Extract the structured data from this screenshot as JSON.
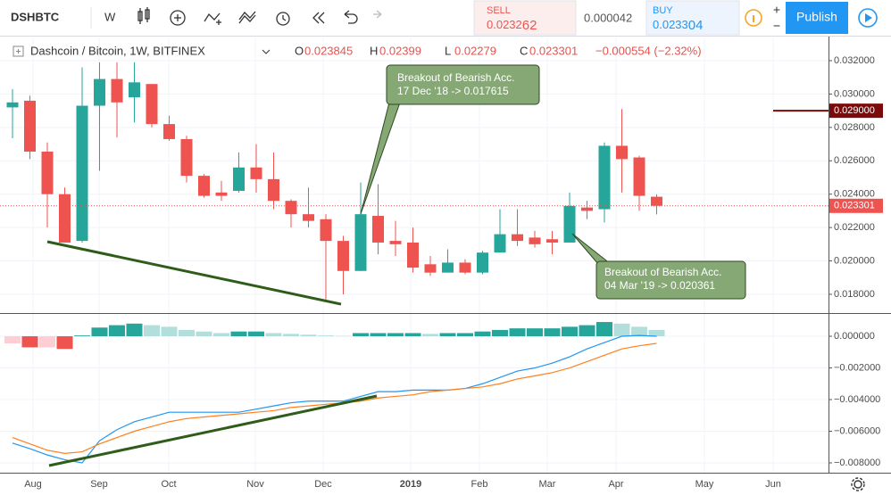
{
  "toolbar": {
    "symbol": "DSHBTC",
    "interval": "W",
    "sell_label": "SELL",
    "sell_main": "0.0232",
    "sell_pips": "62",
    "spread": "0.000042",
    "buy_label": "BUY",
    "buy_main": "0.0233",
    "buy_pips": "04",
    "publish": "Publish"
  },
  "legend": {
    "title": "Dashcoin / Bitcoin, 1W, BITFINEX",
    "ohlc_labels": [
      "O",
      "H",
      "L",
      "C"
    ],
    "change": "−0.000554 (−2.32%)"
  },
  "annotations": [
    {
      "lines": [
        "Breakout of Bearish Acc.",
        "17 Dec '18 -> 0.017615"
      ]
    },
    {
      "lines": [
        "Breakout of Bearish Acc.",
        "04 Mar '19 -> 0.020361"
      ]
    }
  ],
  "time_labels": [
    "Aug",
    "Sep",
    "Oct",
    "Nov",
    "Dec",
    "2019",
    "Feb",
    "Mar",
    "Apr",
    "May",
    "Jun"
  ],
  "chart_data": [
    {
      "type": "candlestick",
      "up_color": "#26a69a",
      "down_color": "#ef5350",
      "open": [
        0.0292,
        0.0296,
        0.02655,
        0.024,
        0.0212,
        0.0293,
        0.0309,
        0.0298,
        0.0306,
        0.0282,
        0.0273,
        0.0251,
        0.0241,
        0.0242,
        0.0256,
        0.0249,
        0.0236,
        0.0228,
        0.0225,
        0.0212,
        0.0194,
        0.0227,
        0.0212,
        0.0211,
        0.0198,
        0.0193,
        0.0199,
        0.0193,
        0.0205,
        0.0216,
        0.0214,
        0.0213,
        0.0211,
        0.0232,
        0.0231,
        0.0269,
        0.0262,
        0.023845
      ],
      "high": [
        0.0303,
        0.0299,
        0.0271,
        0.0244,
        0.0316,
        0.0319,
        0.0319,
        0.0319,
        0.0306,
        0.0287,
        0.0275,
        0.0252,
        0.0248,
        0.0265,
        0.027,
        0.0265,
        0.0237,
        0.0244,
        0.0228,
        0.0215,
        0.0247,
        0.0246,
        0.0224,
        0.022,
        0.0203,
        0.0207,
        0.0201,
        0.0206,
        0.0231,
        0.0231,
        0.0218,
        0.0218,
        0.0241,
        0.0236,
        0.0271,
        0.0291,
        0.0263,
        0.02399
      ],
      "low": [
        0.02735,
        0.0261,
        0.022,
        0.0211,
        0.0211,
        0.0254,
        0.0274,
        0.0283,
        0.028,
        0.0272,
        0.0247,
        0.0238,
        0.0236,
        0.0241,
        0.0241,
        0.0231,
        0.022,
        0.022,
        0.0177,
        0.018,
        0.0194,
        0.0204,
        0.0203,
        0.0193,
        0.0191,
        0.0193,
        0.0192,
        0.0192,
        0.0205,
        0.0209,
        0.0208,
        0.0204,
        0.0211,
        0.0225,
        0.0223,
        0.0241,
        0.023,
        0.02279
      ],
      "close": [
        0.0295,
        0.02655,
        0.024,
        0.0211,
        0.0293,
        0.0309,
        0.0295,
        0.0307,
        0.0282,
        0.0273,
        0.0251,
        0.0239,
        0.0239,
        0.0256,
        0.0249,
        0.0236,
        0.0228,
        0.0224,
        0.0212,
        0.0194,
        0.0228,
        0.0211,
        0.021,
        0.0196,
        0.0193,
        0.0199,
        0.0193,
        0.0205,
        0.0216,
        0.0212,
        0.021,
        0.0211,
        0.0233,
        0.023,
        0.0269,
        0.0261,
        0.0239,
        0.023301
      ],
      "ylim": [
        0.01693,
        0.03339
      ],
      "yticks": [
        {
          "value": 0.018,
          "label": "0.018000"
        },
        {
          "value": 0.02,
          "label": "0.020000"
        },
        {
          "value": 0.022,
          "label": "0.022000"
        },
        {
          "value": 0.024,
          "label": "0.024000"
        },
        {
          "value": 0.026,
          "label": "0.026000"
        },
        {
          "value": 0.028,
          "label": "0.028000"
        },
        {
          "value": 0.03,
          "label": "0.030000"
        },
        {
          "value": 0.032,
          "label": "0.032000"
        }
      ],
      "marker_line": {
        "value": 0.029,
        "label": "0.029000",
        "color": "#7b0a0a"
      },
      "grid": true
    },
    {
      "type": "macd",
      "histogram": [
        -0.00045,
        -0.0007,
        -0.0007,
        -0.0008,
        5e-05,
        0.00055,
        0.0007,
        0.0008,
        0.0007,
        0.0006,
        0.0004,
        0.0003,
        0.0002,
        0.0003,
        0.0003,
        0.0002,
        0.00015,
        0.0001,
        5e-05,
        2e-05,
        0.0002,
        0.0002,
        0.0002,
        0.0002,
        0.00015,
        0.0002,
        0.0002,
        0.0003,
        0.0004,
        0.0005,
        0.0005,
        0.0005,
        0.0006,
        0.0007,
        0.0009,
        0.0008,
        0.0006,
        0.0004
      ],
      "histogram_colors": [
        "#26a69a",
        "#b2dfdb",
        "#ef5350",
        "#ffcdd2"
      ],
      "series": [
        {
          "color": "#2196f3",
          "values": [
            -0.00675,
            -0.0071,
            -0.0075,
            -0.0078,
            -0.008,
            -0.0066,
            -0.0059,
            -0.0054,
            -0.0051,
            -0.0048,
            -0.0048,
            -0.0048,
            -0.0048,
            -0.0048,
            -0.0046,
            -0.0044,
            -0.0042,
            -0.0041,
            -0.0041,
            -0.0041,
            -0.0038,
            -0.0035,
            -0.0035,
            -0.0034,
            -0.0034,
            -0.0034,
            -0.0033,
            -0.003,
            -0.0026,
            -0.0022,
            -0.002,
            -0.0017,
            -0.0013,
            -0.0008,
            -0.0004,
            0.0,
            5e-05,
            0.0
          ]
        },
        {
          "color": "#ff7f1e",
          "values": [
            -0.0064,
            -0.0068,
            -0.0072,
            -0.0074,
            -0.0073,
            -0.0068,
            -0.0064,
            -0.006,
            -0.0057,
            -0.0054,
            -0.0052,
            -0.0051,
            -0.005,
            -0.0049,
            -0.0048,
            -0.0047,
            -0.0045,
            -0.0044,
            -0.0043,
            -0.0042,
            -0.0041,
            -0.0039,
            -0.0038,
            -0.0037,
            -0.0035,
            -0.0034,
            -0.0033,
            -0.0032,
            -0.003,
            -0.0027,
            -0.0025,
            -0.0023,
            -0.002,
            -0.0016,
            -0.0012,
            -0.0008,
            -0.0006,
            -0.00045
          ]
        }
      ],
      "ylim": [
        -0.00862,
        0.00141
      ],
      "yticks": [
        {
          "value": 0,
          "label": "0.000000"
        },
        {
          "value": -0.002,
          "label": "−0.002000"
        },
        {
          "value": -0.004,
          "label": "−0.004000"
        },
        {
          "value": -0.006,
          "label": "−0.006000"
        },
        {
          "value": -0.008,
          "label": "−0.008000"
        }
      ],
      "grid": true
    }
  ]
}
